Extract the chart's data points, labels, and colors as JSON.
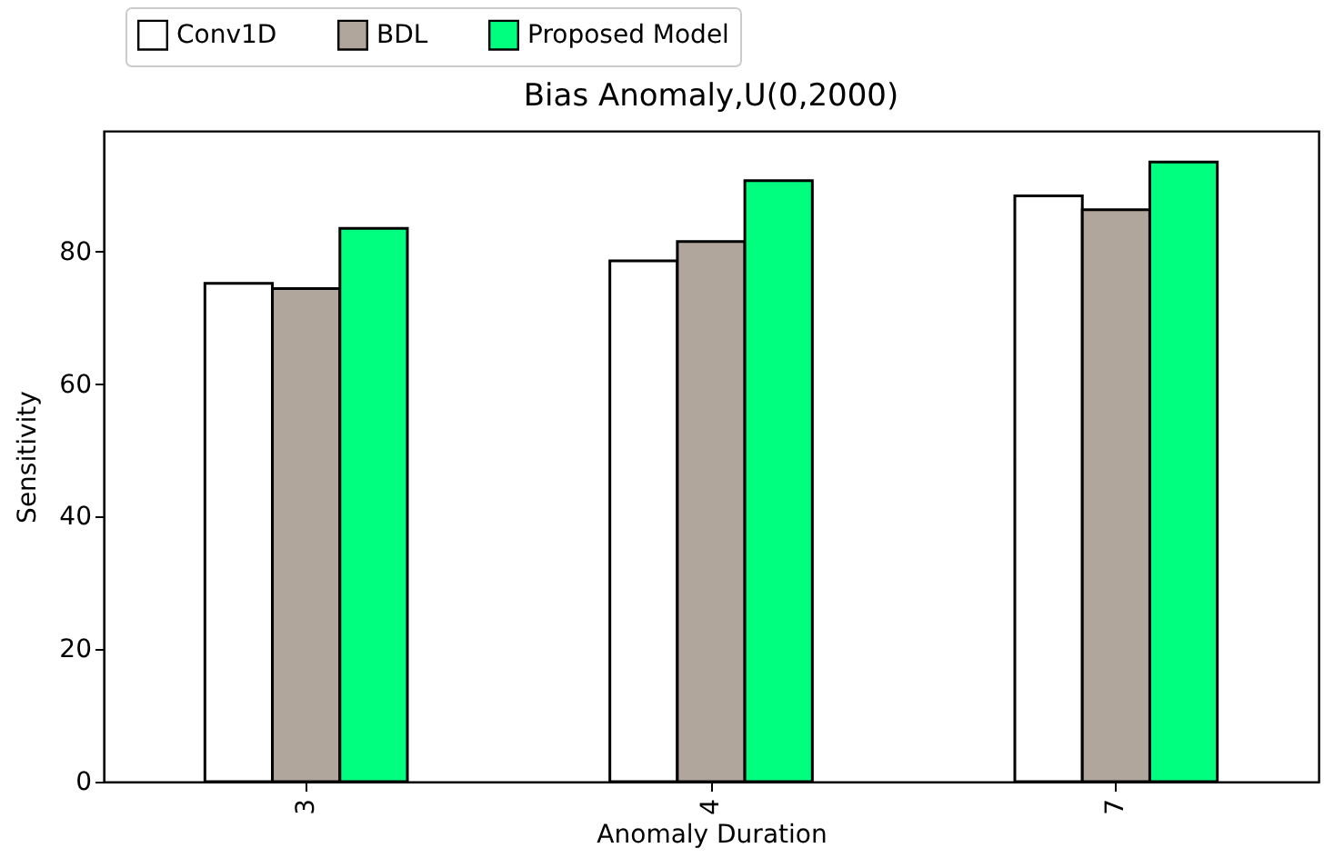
{
  "chart_data": {
    "type": "bar",
    "title": "Bias Anomaly,U(0,2000)",
    "xlabel": "Anomaly Duration",
    "ylabel": "Sensitivity",
    "categories": [
      "3",
      "4",
      "7"
    ],
    "series": [
      {
        "name": "Conv1D",
        "color": "#ffffff",
        "values": [
          75.2,
          78.6,
          88.4
        ]
      },
      {
        "name": "BDL",
        "color": "#b0a69c",
        "values": [
          74.4,
          81.5,
          86.3
        ]
      },
      {
        "name": "Proposed Model",
        "color": "#00ff7f",
        "values": [
          83.5,
          90.7,
          93.5
        ]
      }
    ],
    "ylim": [
      0,
      98.2
    ],
    "yticks": [
      0,
      20,
      40,
      60,
      80
    ],
    "grid": false,
    "legend": "top left"
  }
}
